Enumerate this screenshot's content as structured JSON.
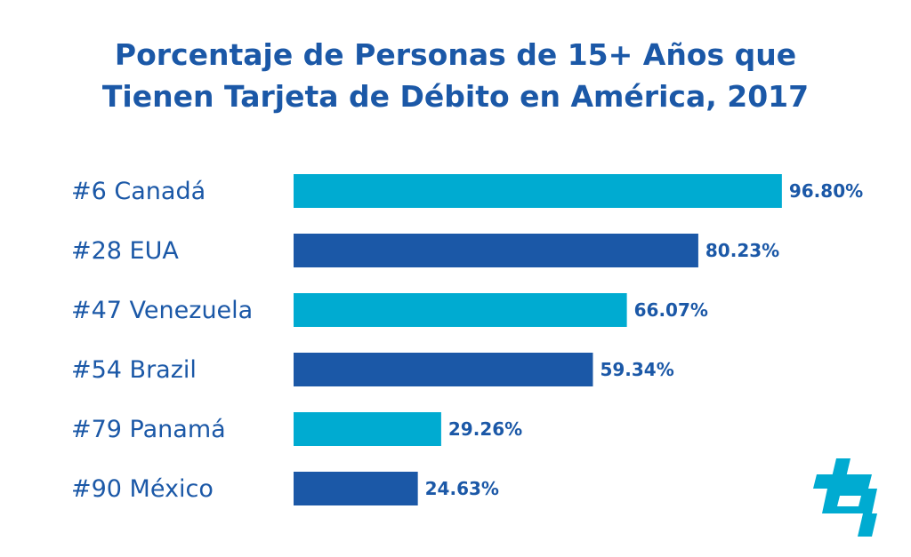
{
  "chart_data": {
    "type": "bar",
    "orientation": "horizontal",
    "title_lines": [
      "Porcentaje de Personas de 15+ Años que",
      "Tienen Tarjeta de Débito en América, 2017"
    ],
    "categories": [
      "#6 Canadá",
      "#28 EUA",
      "#47 Venezuela",
      "#54 Brazil",
      "#79 Panamá",
      "#90 México"
    ],
    "values": [
      96.8,
      80.23,
      66.07,
      59.34,
      29.26,
      24.63
    ],
    "value_labels": [
      "96.80%",
      "80.23%",
      "66.07%",
      "59.34%",
      "29.26%",
      "24.63%"
    ],
    "bar_colors": [
      "#00abd1",
      "#1b58a7",
      "#00abd1",
      "#1b58a7",
      "#00abd1",
      "#1b58a7"
    ],
    "xlim": [
      0,
      100
    ],
    "grid": false,
    "legend": "none"
  },
  "colors": {
    "title": "#1b58a7",
    "text": "#1b58a7",
    "accent": "#00abd1"
  },
  "logo": {
    "icon": "brand-logo-icon"
  }
}
